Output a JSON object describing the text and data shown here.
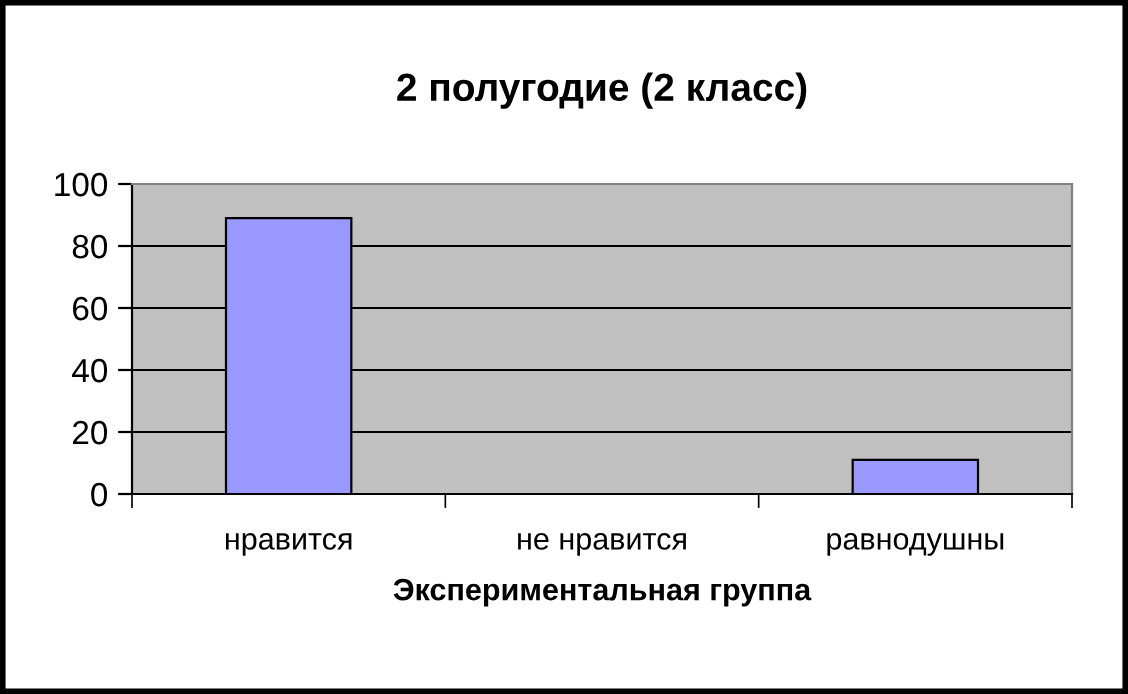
{
  "chart_data": {
    "type": "bar",
    "title": "2 полугодие (2 класс)",
    "xlabel": "Экспериментальная группа",
    "categories": [
      "нравится",
      "не нравится",
      "равнодушны"
    ],
    "values": [
      89,
      0,
      11
    ],
    "color": "#9999ff",
    "ylim": [
      0,
      100
    ],
    "yticks": [
      0,
      20,
      40,
      60,
      80,
      100
    ],
    "grid": "y",
    "legend": false
  }
}
